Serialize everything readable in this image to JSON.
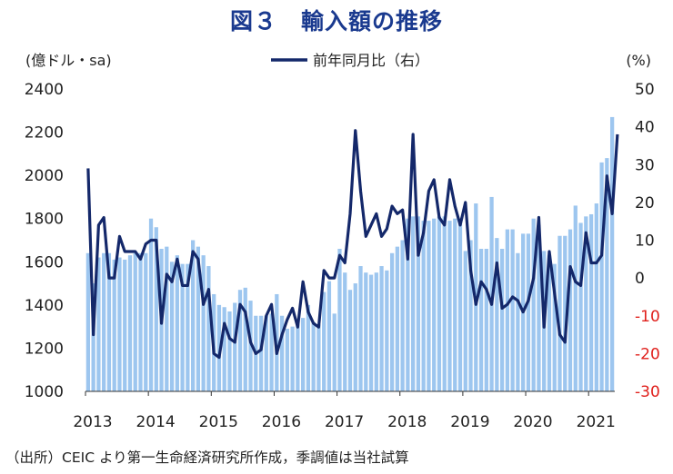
{
  "header": {
    "title": "図３　輸入額の推移"
  },
  "footer": {
    "source": "（出所）CEIC より第一生命経済研究所作成，季調値は当社試算"
  },
  "colors": {
    "bar": "#9dc6ef",
    "line": "#14286a",
    "right_axis_negative": "#e0201c",
    "text": "#222222"
  },
  "chart_data": {
    "type": "bar+line",
    "title": "図３　輸入額の推移",
    "left_unit": "(億ドル・sa)",
    "right_unit": "(%)",
    "legend_label": "前年同月比（右）",
    "legend_position": "top-center",
    "left_axis": {
      "min": 1000,
      "max": 2400,
      "ticks": [
        "1000",
        "1200",
        "1400",
        "1600",
        "1800",
        "2000",
        "2200",
        "2400"
      ]
    },
    "right_axis": {
      "min": -30,
      "max": 50,
      "ticks": [
        "50",
        "40",
        "30",
        "20",
        "10",
        "0",
        "-10",
        "-20",
        "-30"
      ]
    },
    "year_labels": [
      "2013",
      "2014",
      "2015",
      "2016",
      "2017",
      "2018",
      "2019",
      "2020",
      "2021"
    ],
    "start": "2013-01",
    "grid": false,
    "series": [
      {
        "name": "輸入額 (億ドル・sa)",
        "axis": "left",
        "kind": "bar",
        "values": [
          1640,
          1500,
          1620,
          1640,
          1640,
          1610,
          1620,
          1610,
          1630,
          1640,
          1640,
          1640,
          1800,
          1760,
          1660,
          1670,
          1600,
          1630,
          1590,
          1590,
          1700,
          1670,
          1630,
          1580,
          1450,
          1400,
          1390,
          1370,
          1410,
          1470,
          1480,
          1420,
          1350,
          1350,
          1350,
          1360,
          1450,
          1350,
          1290,
          1300,
          1310,
          1340,
          1400,
          1320,
          1310,
          1460,
          1510,
          1360,
          1660,
          1550,
          1470,
          1500,
          1580,
          1550,
          1540,
          1550,
          1580,
          1560,
          1640,
          1670,
          1700,
          1800,
          1810,
          1810,
          1790,
          1790,
          1800,
          1810,
          1810,
          1790,
          1800,
          1800,
          1650,
          1700,
          1870,
          1660,
          1660,
          1900,
          1710,
          1660,
          1750,
          1750,
          1640,
          1730,
          1730,
          1800,
          1770,
          1650,
          1630,
          1590,
          1720,
          1720,
          1750,
          1860,
          1780,
          1810,
          1820,
          1870,
          2060,
          2080,
          2270
        ]
      },
      {
        "name": "前年同月比（右）",
        "axis": "right",
        "kind": "line",
        "values": [
          29,
          -15,
          14,
          16,
          0,
          0,
          11,
          7,
          7,
          7,
          5,
          9,
          10,
          10,
          -12,
          1,
          -1,
          5,
          -2,
          -2,
          7,
          5,
          -7,
          -3,
          -20,
          -21,
          -12,
          -16,
          -17,
          -7,
          -9,
          -17,
          -20,
          -19,
          -10,
          -7,
          -20,
          -15,
          -11,
          -8,
          -13,
          -1,
          -9,
          -12,
          -13,
          2,
          0,
          0,
          6,
          4,
          17,
          39,
          23,
          11,
          14,
          17,
          11,
          13,
          19,
          17,
          18,
          5,
          38,
          6,
          12,
          23,
          26,
          16,
          14,
          26,
          19,
          14,
          20,
          2,
          -7,
          -1,
          -3,
          -7,
          4,
          -8,
          -7,
          -5,
          -6,
          -9,
          -6,
          0,
          16,
          -13,
          7,
          -4,
          -15,
          -17,
          3,
          -1,
          -2,
          12,
          4,
          4,
          6,
          27,
          17,
          38
        ]
      }
    ]
  }
}
